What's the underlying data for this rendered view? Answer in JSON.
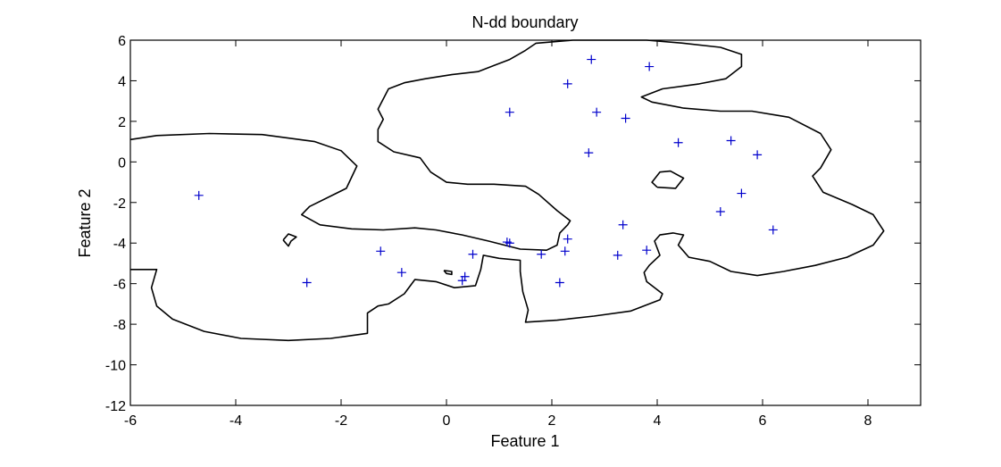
{
  "chart_data": {
    "type": "scatter",
    "title": "N-dd boundary",
    "xlabel": "Feature 1",
    "ylabel": "Feature 2",
    "xlim": [
      -6,
      9
    ],
    "ylim": [
      -12,
      6
    ],
    "xticks": [
      -6,
      -4,
      -2,
      0,
      2,
      4,
      6,
      8
    ],
    "yticks": [
      -12,
      -10,
      -8,
      -6,
      -4,
      -2,
      0,
      2,
      4,
      6
    ],
    "grid": false,
    "legend": "none",
    "colors": {
      "points": "#0000cc",
      "boundary": "#000000"
    },
    "series": [
      {
        "marker": "plus",
        "points": [
          [
            -4.7,
            -1.65
          ],
          [
            -2.65,
            -5.95
          ],
          [
            -1.25,
            -4.4
          ],
          [
            -0.85,
            -5.45
          ],
          [
            0.3,
            -5.85
          ],
          [
            0.35,
            -5.65
          ],
          [
            0.5,
            -4.55
          ],
          [
            1.15,
            -3.95
          ],
          [
            1.2,
            -4.0
          ],
          [
            1.2,
            2.45
          ],
          [
            1.8,
            -4.55
          ],
          [
            2.15,
            -5.95
          ],
          [
            2.25,
            -4.4
          ],
          [
            2.3,
            -3.8
          ],
          [
            2.3,
            3.85
          ],
          [
            2.7,
            0.45
          ],
          [
            2.75,
            5.05
          ],
          [
            2.85,
            2.45
          ],
          [
            3.25,
            -4.6
          ],
          [
            3.35,
            -3.1
          ],
          [
            3.4,
            2.15
          ],
          [
            3.8,
            -4.35
          ],
          [
            3.85,
            4.7
          ],
          [
            4.4,
            0.95
          ],
          [
            5.2,
            -2.45
          ],
          [
            5.4,
            1.05
          ],
          [
            5.6,
            -1.55
          ],
          [
            5.9,
            0.35
          ],
          [
            6.2,
            -3.35
          ]
        ]
      }
    ],
    "boundaries": [
      [
        [
          -6,
          1.1
        ],
        [
          -5.5,
          1.3
        ],
        [
          -4.5,
          1.4
        ],
        [
          -3.5,
          1.35
        ],
        [
          -2.5,
          1.0
        ],
        [
          -2.0,
          0.55
        ],
        [
          -1.7,
          -0.2
        ],
        [
          -1.9,
          -1.3
        ],
        [
          -2.6,
          -2.2
        ],
        [
          -2.75,
          -2.6
        ],
        [
          -2.4,
          -3.1
        ],
        [
          -1.8,
          -3.3
        ],
        [
          -1.2,
          -3.35
        ],
        [
          -0.6,
          -3.25
        ],
        [
          -0.2,
          -3.35
        ],
        [
          0.3,
          -3.6
        ],
        [
          0.8,
          -3.9
        ],
        [
          1.4,
          -4.3
        ],
        [
          1.9,
          -4.35
        ],
        [
          2.1,
          -4.1
        ],
        [
          2.15,
          -3.5
        ],
        [
          2.3,
          -3.1
        ],
        [
          2.35,
          -2.9
        ],
        [
          2.1,
          -2.4
        ],
        [
          1.75,
          -1.6
        ],
        [
          1.5,
          -1.2
        ],
        [
          0.9,
          -1.1
        ],
        [
          0.4,
          -1.1
        ],
        [
          0.0,
          -1.0
        ],
        [
          -0.3,
          -0.5
        ],
        [
          -0.5,
          0.2
        ],
        [
          -1.0,
          0.5
        ],
        [
          -1.3,
          1.0
        ],
        [
          -1.3,
          1.6
        ],
        [
          -1.2,
          2.1
        ],
        [
          -1.3,
          2.6
        ],
        [
          -1.1,
          3.6
        ],
        [
          -0.8,
          3.9
        ],
        [
          -0.4,
          4.1
        ],
        [
          0.1,
          4.3
        ],
        [
          0.6,
          4.45
        ],
        [
          0.9,
          4.75
        ],
        [
          1.2,
          5.05
        ],
        [
          1.5,
          5.5
        ],
        [
          1.7,
          5.85
        ],
        [
          2.4,
          6.0
        ],
        [
          3.8,
          6.0
        ],
        [
          4.5,
          5.85
        ],
        [
          5.2,
          5.65
        ],
        [
          5.6,
          5.3
        ],
        [
          5.6,
          4.7
        ],
        [
          5.3,
          4.1
        ],
        [
          4.8,
          3.85
        ],
        [
          4.1,
          3.6
        ],
        [
          3.7,
          3.2
        ],
        [
          3.9,
          2.95
        ],
        [
          4.5,
          2.65
        ],
        [
          5.2,
          2.5
        ],
        [
          5.8,
          2.5
        ],
        [
          6.5,
          2.2
        ],
        [
          7.1,
          1.4
        ],
        [
          7.3,
          0.6
        ],
        [
          7.1,
          -0.3
        ],
        [
          6.95,
          -0.7
        ],
        [
          7.15,
          -1.5
        ],
        [
          7.7,
          -2.1
        ],
        [
          8.1,
          -2.6
        ],
        [
          8.3,
          -3.4
        ],
        [
          8.1,
          -4.1
        ],
        [
          7.6,
          -4.7
        ],
        [
          7.0,
          -5.1
        ],
        [
          6.4,
          -5.4
        ],
        [
          5.9,
          -5.6
        ],
        [
          5.4,
          -5.4
        ],
        [
          5.0,
          -4.9
        ],
        [
          4.6,
          -4.7
        ],
        [
          4.4,
          -4.1
        ],
        [
          4.5,
          -3.6
        ],
        [
          4.3,
          -3.5
        ],
        [
          4.05,
          -3.6
        ],
        [
          3.95,
          -3.9
        ],
        [
          4.05,
          -4.6
        ],
        [
          3.85,
          -5.1
        ],
        [
          3.75,
          -5.45
        ],
        [
          3.8,
          -5.9
        ],
        [
          4.1,
          -6.5
        ],
        [
          4.05,
          -6.8
        ],
        [
          3.5,
          -7.35
        ],
        [
          2.8,
          -7.6
        ],
        [
          2.1,
          -7.8
        ],
        [
          1.5,
          -7.9
        ],
        [
          1.55,
          -7.3
        ],
        [
          1.45,
          -6.4
        ],
        [
          1.4,
          -5.4
        ],
        [
          1.4,
          -4.85
        ],
        [
          1.0,
          -4.75
        ],
        [
          0.7,
          -4.6
        ],
        [
          0.65,
          -5.3
        ],
        [
          0.55,
          -6.1
        ],
        [
          0.15,
          -6.2
        ],
        [
          -0.2,
          -5.9
        ],
        [
          -0.6,
          -5.8
        ],
        [
          -0.8,
          -6.5
        ],
        [
          -1.1,
          -7.0
        ],
        [
          -1.3,
          -7.1
        ],
        [
          -1.5,
          -7.45
        ],
        [
          -1.5,
          -8.45
        ],
        [
          -2.2,
          -8.7
        ],
        [
          -3.0,
          -8.8
        ],
        [
          -3.9,
          -8.7
        ],
        [
          -4.6,
          -8.35
        ],
        [
          -5.2,
          -7.75
        ],
        [
          -5.5,
          -7.1
        ],
        [
          -5.6,
          -6.2
        ],
        [
          -5.5,
          -5.3
        ],
        [
          -6,
          -5.3
        ]
      ],
      [
        [
          -3.1,
          -3.85
        ],
        [
          -3.0,
          -4.15
        ],
        [
          -2.95,
          -3.9
        ],
        [
          -2.85,
          -3.7
        ],
        [
          -3.0,
          -3.55
        ],
        [
          -3.1,
          -3.85
        ]
      ],
      [
        [
          4.0,
          -1.25
        ],
        [
          4.35,
          -1.3
        ],
        [
          4.5,
          -0.8
        ],
        [
          4.25,
          -0.45
        ],
        [
          4.05,
          -0.5
        ],
        [
          3.9,
          -1.0
        ],
        [
          4.0,
          -1.25
        ]
      ],
      [
        [
          -0.05,
          -5.35
        ],
        [
          0.1,
          -5.4
        ],
        [
          0.1,
          -5.55
        ],
        [
          0.0,
          -5.5
        ],
        [
          -0.05,
          -5.35
        ]
      ]
    ]
  }
}
